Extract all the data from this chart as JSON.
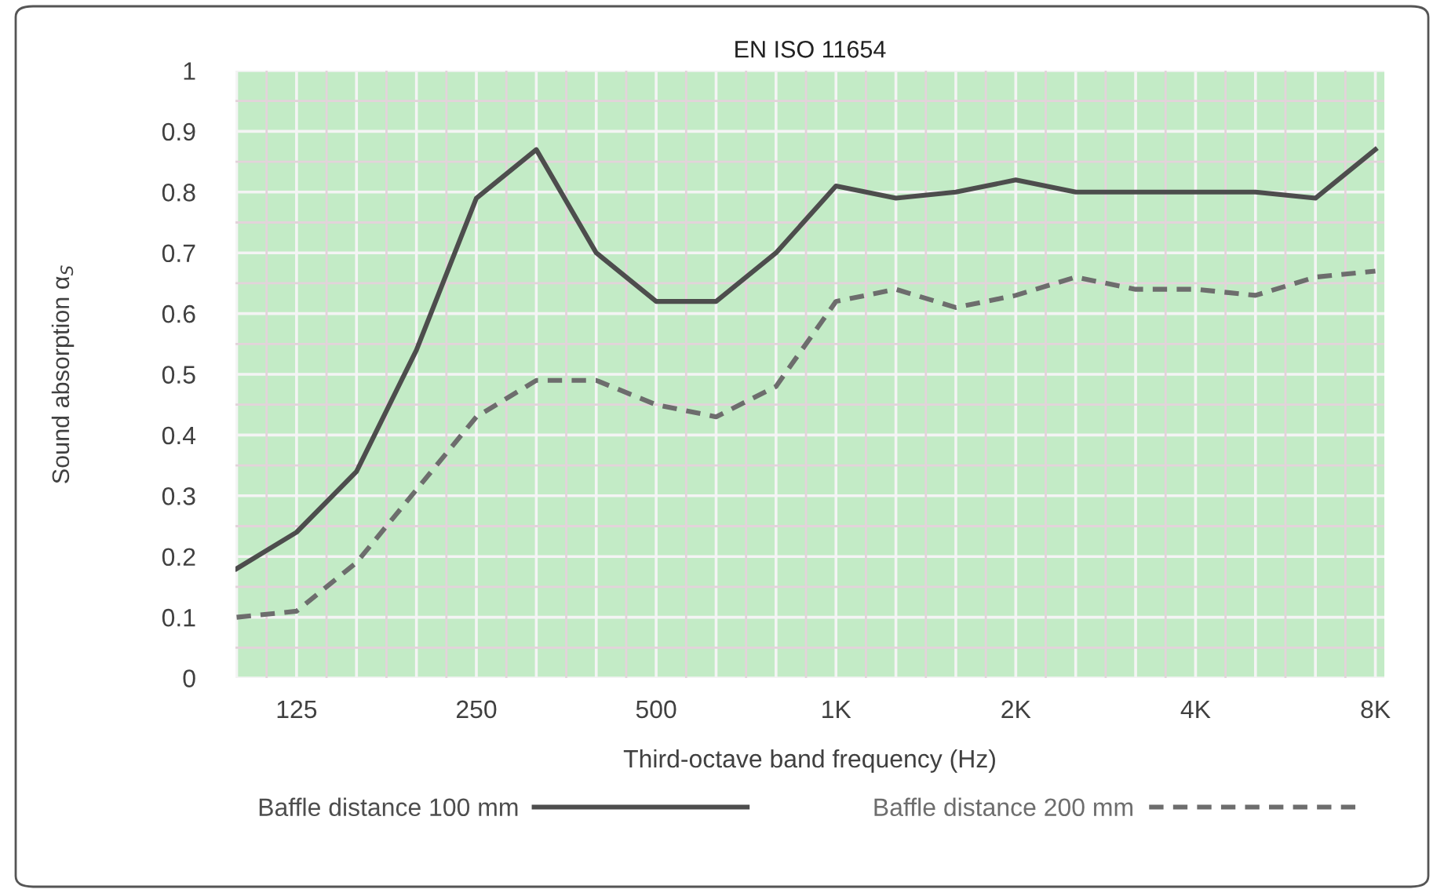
{
  "chart_data": {
    "type": "line",
    "title": "EN ISO 11654",
    "xlabel": "Third-octave band frequency (Hz)",
    "ylabel": "Sound absorption α$_{S}$",
    "categories": [
      null,
      "125",
      null,
      null,
      "250",
      null,
      null,
      "500",
      null,
      null,
      "1K",
      null,
      null,
      "2K",
      null,
      null,
      "4K",
      null,
      null,
      "8K"
    ],
    "series": [
      {
        "name": "Baffle distance 100 mm",
        "color": "#4d4d4d",
        "line_style": "solid",
        "values": [
          0.18,
          0.24,
          0.34,
          0.54,
          0.79,
          0.87,
          0.7,
          0.62,
          0.62,
          0.7,
          0.81,
          0.79,
          0.8,
          0.82,
          0.8,
          0.8,
          0.8,
          0.8,
          0.79,
          0.87
        ]
      },
      {
        "name": "Baffle distance 200 mm",
        "color": "#6d6d6d",
        "line_style": "dashed",
        "values": [
          0.1,
          0.11,
          0.19,
          0.31,
          0.43,
          0.49,
          0.49,
          0.45,
          0.43,
          0.48,
          0.62,
          0.64,
          0.61,
          0.63,
          0.66,
          0.64,
          0.64,
          0.63,
          0.66,
          0.67
        ]
      }
    ],
    "ylim": [
      0,
      1
    ],
    "yticks": [
      0,
      0.1,
      0.2,
      0.3,
      0.4,
      0.5,
      0.6,
      0.7,
      0.8,
      0.9,
      1
    ],
    "grid": true,
    "legend": "bottom"
  }
}
